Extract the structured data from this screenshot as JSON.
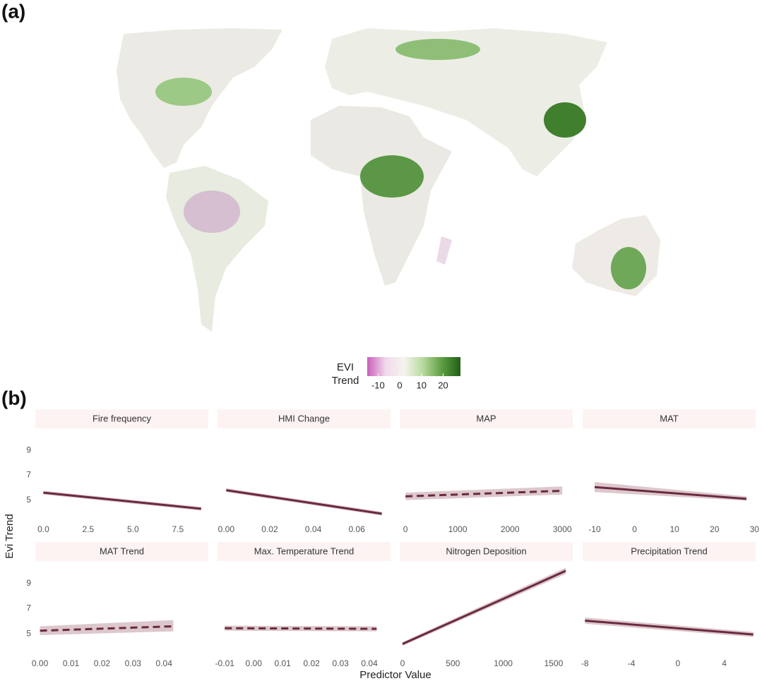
{
  "labels": {
    "a": "(a)",
    "b": "(b)"
  },
  "chart_data": [
    {
      "type": "map",
      "legend_title": [
        "EVI",
        "Trend"
      ],
      "colorbar": {
        "lim": [
          -15,
          28
        ],
        "ticks": [
          -10,
          0,
          10,
          20
        ],
        "colors": [
          "#c95fb8",
          "#f1daec",
          "#f4f4ee",
          "#b7d99c",
          "#5e9e42",
          "#1f5f14"
        ]
      }
    },
    {
      "type": "line",
      "y_label": "Evi Trend",
      "x_label": "Predictor Value",
      "ylim": [
        3.5,
        10.5
      ],
      "yticks": [
        5,
        7,
        9
      ],
      "line_color": "#6b2a3e",
      "band_color": "#dcc8cc",
      "strip_color": "#fdf3f3",
      "panels": [
        {
          "title": "Fire frequency",
          "xlim": [
            -0.45,
            9.2
          ],
          "xticks": [
            {
              "value": 0,
              "label": "0.0"
            },
            2.5,
            {
              "value": 5,
              "label": "5.0"
            },
            7.5
          ],
          "x": [
            0,
            8.8
          ],
          "values": [
            5.6,
            4.3
          ],
          "lower": [
            5.45,
            4.15
          ],
          "upper": [
            5.75,
            4.45
          ],
          "dashed": false
        },
        {
          "title": "HMI Change",
          "xlim": [
            -0.004,
            0.0755
          ],
          "xticks": [
            {
              "value": 0,
              "label": "0.00"
            },
            0.02,
            0.04,
            0.06
          ],
          "x": [
            0,
            0.0715
          ],
          "values": [
            5.8,
            3.9
          ],
          "lower": [
            5.65,
            3.75
          ],
          "upper": [
            5.95,
            4.05
          ],
          "dashed": false
        },
        {
          "title": "MAP",
          "xlim": [
            -110,
            3200
          ],
          "xticks": [
            0,
            1000,
            2000,
            3000
          ],
          "x": [
            0,
            3000
          ],
          "values": [
            5.3,
            5.75
          ],
          "lower": [
            5.0,
            5.45
          ],
          "upper": [
            5.6,
            6.1
          ],
          "dashed": true
        },
        {
          "title": "MAT",
          "xlim": [
            -13,
            30.3
          ],
          "xticks": [
            -10,
            0,
            10,
            20,
            30
          ],
          "x": [
            -10,
            28
          ],
          "values": [
            6.05,
            5.1
          ],
          "lower": [
            5.65,
            4.95
          ],
          "upper": [
            6.45,
            5.3
          ],
          "dashed": false
        },
        {
          "title": "MAT Trend",
          "xlim": [
            -0.0015,
            0.0543
          ],
          "xticks": [
            {
              "value": 0,
              "label": "0.00"
            },
            0.01,
            0.02,
            0.03,
            0.04
          ],
          "x": [
            0,
            0.043
          ],
          "values": [
            5.25,
            5.6
          ],
          "lower": [
            4.9,
            5.2
          ],
          "upper": [
            5.6,
            6.1
          ],
          "dashed": true
        },
        {
          "title": "Max. Temperature Trend",
          "xlim": [
            -0.0125,
            0.0473
          ],
          "xticks": [
            -0.01,
            {
              "value": 0,
              "label": "0.00"
            },
            0.01,
            0.02,
            0.03,
            0.04
          ],
          "x": [
            -0.01,
            0.0425
          ],
          "values": [
            5.45,
            5.4
          ],
          "lower": [
            5.25,
            5.2
          ],
          "upper": [
            5.65,
            5.6
          ],
          "dashed": true
        },
        {
          "title": "Nitrogen Deposition",
          "xlim": [
            -28,
            1690
          ],
          "xticks": [
            0,
            500,
            1000,
            1500
          ],
          "x": [
            0,
            1620
          ],
          "values": [
            4.2,
            10.0
          ],
          "lower": [
            4.05,
            9.75
          ],
          "upper": [
            4.35,
            10.25
          ],
          "dashed": false
        },
        {
          "title": "Precipitation Trend",
          "xlim": [
            -8.2,
            6.7
          ],
          "xticks": [
            -8,
            -4,
            0,
            4
          ],
          "x": [
            -8,
            6.5
          ],
          "values": [
            6.05,
            4.95
          ],
          "lower": [
            5.8,
            4.75
          ],
          "upper": [
            6.3,
            5.15
          ],
          "dashed": false
        }
      ]
    }
  ]
}
